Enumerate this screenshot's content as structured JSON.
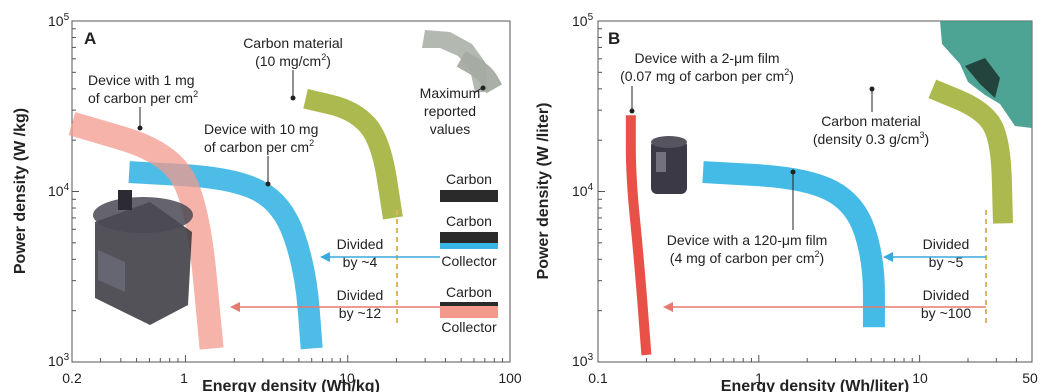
{
  "chart_data": [
    {
      "type": "line",
      "panel_label": "A",
      "xlabel": "Energy density (Wh/kg)",
      "ylabel": "Power density (W /kg)",
      "x_scale": "log",
      "y_scale": "log",
      "xlim": [
        0.2,
        100
      ],
      "ylim": [
        1000,
        100000
      ],
      "x_ticks": [
        "0.2",
        "1",
        "10",
        "100"
      ],
      "x_tick_values": [
        0.2,
        1,
        10,
        100
      ],
      "y_ticks": [
        "10",
        "10",
        "10"
      ],
      "y_tick_exponents": [
        "3",
        "4",
        "5"
      ],
      "y_tick_values": [
        1000,
        10000,
        100000
      ],
      "colors": {
        "carbon_material": "#a8b545",
        "device_10mg": "#3ab6e6",
        "device_1mg": "#f39a8c",
        "max_reported": "#a6aca2",
        "arrow_blue": "#3aa9de",
        "arrow_red": "#e57a70",
        "divider": "#d9b85c"
      },
      "series": [
        {
          "key": "carbon_material",
          "points": [
            [
              5.5,
              35000
            ],
            [
              11,
              30000
            ],
            [
              16,
              20000
            ],
            [
              19,
              7000
            ]
          ]
        },
        {
          "key": "device_10mg",
          "points": [
            [
              0.45,
              13000
            ],
            [
              2,
              12000
            ],
            [
              4,
              8500
            ],
            [
              5.5,
              3500
            ],
            [
              6,
              1200
            ]
          ]
        },
        {
          "key": "device_1mg",
          "points": [
            [
              0.2,
              25000
            ],
            [
              0.8,
              17000
            ],
            [
              1.2,
              8000
            ],
            [
              1.45,
              1200
            ]
          ]
        },
        {
          "key": "max_reported",
          "points": [
            [
              50,
              60000
            ],
            [
              70,
              50000
            ],
            [
              80,
              40000
            ]
          ]
        }
      ],
      "annotations": {
        "carbon_material": [
          "Carbon material",
          "(10 mg/cm",
          "2",
          ")"
        ],
        "device_1mg": [
          "Device with 1 mg",
          "of carbon per cm",
          "2"
        ],
        "device_10mg": [
          "Device with 10 mg",
          "of carbon per cm",
          "2"
        ],
        "max_reported": [
          "Maximum",
          "reported",
          "values"
        ],
        "divided_4": [
          "Divided",
          "by ~4"
        ],
        "divided_12": [
          "Divided",
          "by ~12"
        ],
        "legend": [
          "Carbon",
          "Carbon",
          "Collector",
          "Carbon",
          "Collector"
        ]
      }
    },
    {
      "type": "line",
      "panel_label": "B",
      "xlabel": "Energy density (Wh/liter)",
      "ylabel": "Power density (W /liter)",
      "x_scale": "log",
      "y_scale": "log",
      "xlim": [
        0.1,
        50
      ],
      "ylim": [
        1000,
        100000
      ],
      "x_ticks": [
        "0.1",
        "1",
        "10",
        "50"
      ],
      "x_tick_values": [
        0.1,
        1,
        10,
        50
      ],
      "y_ticks": [
        "10",
        "10",
        "10"
      ],
      "y_tick_exponents": [
        "3",
        "4",
        "5"
      ],
      "y_tick_values": [
        1000,
        10000,
        100000
      ],
      "colors": {
        "carbon_material": "#a8b545",
        "device_120um": "#3ab6e6",
        "device_2um": "#e8483e",
        "arrow_blue": "#3aa9de",
        "arrow_red": "#e57a70",
        "divider": "#d9b85c"
      },
      "series": [
        {
          "key": "carbon_material",
          "points": [
            [
              12,
              40000
            ],
            [
              25,
              30000
            ],
            [
              32,
              20000
            ],
            [
              33,
              6500
            ]
          ]
        },
        {
          "key": "device_120um",
          "points": [
            [
              0.45,
              13000
            ],
            [
              2,
              12000
            ],
            [
              4,
              8500
            ],
            [
              5.2,
              4000
            ],
            [
              5.2,
              1600
            ]
          ]
        },
        {
          "key": "device_2um",
          "points": [
            [
              0.16,
              28000
            ],
            [
              0.16,
              12000
            ],
            [
              0.18,
              4000
            ],
            [
              0.2,
              1100
            ]
          ]
        }
      ],
      "annotations": {
        "device_2um": [
          "Device with a 2-μm film",
          "(0.07 mg of carbon per cm",
          "2",
          ")"
        ],
        "carbon_material": [
          "Carbon material",
          "(density 0.3 g/cm",
          "3",
          ")"
        ],
        "device_120um": [
          "Device with a 120-μm film",
          "(4 mg of carbon per cm",
          "2",
          ")"
        ],
        "divided_5": [
          "Divided",
          "by ~5"
        ],
        "divided_100": [
          "Divided",
          "by ~100"
        ]
      }
    }
  ]
}
